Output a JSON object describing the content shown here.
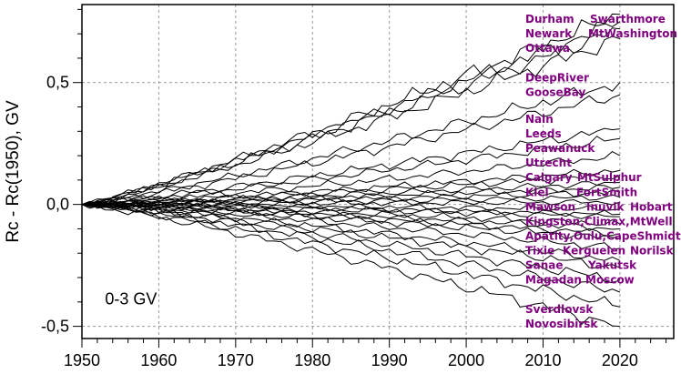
{
  "chart_data": {
    "type": "line",
    "title": "",
    "xlabel": "",
    "ylabel": "Rc - Rc(1950), GV",
    "annotation": "0-3 GV",
    "xlim": [
      1950,
      2027
    ],
    "ylim": [
      -0.55,
      0.82
    ],
    "x_ticks": [
      1950,
      1960,
      1970,
      1980,
      1990,
      2000,
      2010,
      2020
    ],
    "y_ticks": [
      {
        "value": 0.5,
        "label": "0,5"
      },
      {
        "value": 0.0,
        "label": "0,0"
      },
      {
        "value": -0.5,
        "label": "-0,5"
      }
    ],
    "grid": true,
    "x_start": 1950,
    "x_end": 2020,
    "series_end_values": [
      0.78,
      0.75,
      0.72,
      0.68,
      0.5,
      0.45,
      0.31,
      0.27,
      0.2,
      0.14,
      0.12,
      0.09,
      0.07,
      0.05,
      0.03,
      0.01,
      -0.02,
      -0.04,
      -0.05,
      -0.08,
      -0.1,
      -0.12,
      -0.14,
      -0.18,
      -0.23,
      -0.26,
      -0.31,
      -0.36,
      -0.42,
      -0.5
    ],
    "station_labels": [
      {
        "text": "Durham",
        "y": 0.76
      },
      {
        "text": "Swarthmore",
        "y": 0.76,
        "col": 2
      },
      {
        "text": "Newark",
        "y": 0.7
      },
      {
        "text": "MtWashington",
        "y": 0.7,
        "col": 2
      },
      {
        "text": "Ottawa",
        "y": 0.64
      },
      {
        "text": "DeepRiver",
        "y": 0.52
      },
      {
        "text": "GooseBay",
        "y": 0.46
      },
      {
        "text": "Nain",
        "y": 0.35
      },
      {
        "text": "Leeds",
        "y": 0.29
      },
      {
        "text": "Peawanuck",
        "y": 0.23
      },
      {
        "text": "Utrecht",
        "y": 0.17
      },
      {
        "text": "Calgary",
        "y": 0.11
      },
      {
        "text": "MtSulphur",
        "y": 0.11,
        "col": 2
      },
      {
        "text": "Kiel",
        "y": 0.05
      },
      {
        "text": "FortSmith",
        "y": 0.05,
        "col": 2
      },
      {
        "text": "Mawson",
        "y": -0.01
      },
      {
        "text": "Inuvik",
        "y": -0.01,
        "col": 2
      },
      {
        "text": "Hobart",
        "y": -0.01,
        "col": 3
      },
      {
        "text": "Kingston,Climax,MtWell",
        "y": -0.07
      },
      {
        "text": "Apatity,Oulu,CapeShmidt",
        "y": -0.13
      },
      {
        "text": "Tixie",
        "y": -0.19
      },
      {
        "text": "Kerguelen",
        "y": -0.19,
        "col": 2
      },
      {
        "text": "Norilsk",
        "y": -0.19,
        "col": 3
      },
      {
        "text": "Sanae",
        "y": -0.25
      },
      {
        "text": "Yakutsk",
        "y": -0.25,
        "col": 2
      },
      {
        "text": "Magadan",
        "y": -0.31
      },
      {
        "text": "Moscow",
        "y": -0.31,
        "col": 2
      },
      {
        "text": "Sverdlovsk",
        "y": -0.43
      },
      {
        "text": "Novosibirsk",
        "y": -0.49
      }
    ]
  }
}
